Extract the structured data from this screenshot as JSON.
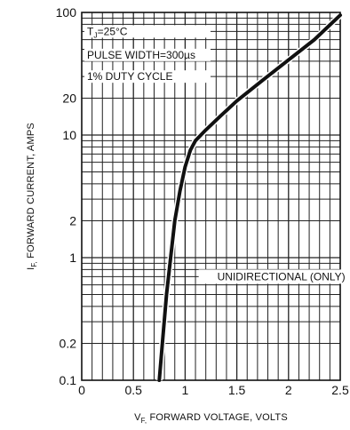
{
  "chart_data": {
    "type": "line",
    "x_label": {
      "sym": "V",
      "sub": "F",
      "text": "FORWARD VOLTAGE, VOLTS"
    },
    "y_label": {
      "sym": "I",
      "sub": "F",
      "text": "FORWARD CURRENT, AMPS"
    },
    "x_scale": "linear",
    "y_scale": "log",
    "xlim": [
      0,
      2.5
    ],
    "ylim": [
      0.1,
      100
    ],
    "x_ticks": [
      {
        "value": 0,
        "label": "0"
      },
      {
        "value": 0.5,
        "label": "0.5"
      },
      {
        "value": 1,
        "label": "1"
      },
      {
        "value": 1.5,
        "label": "1.5"
      },
      {
        "value": 2,
        "label": "2"
      },
      {
        "value": 2.5,
        "label": "2.5"
      }
    ],
    "y_ticks": [
      {
        "value": 0.1,
        "label": "0.1"
      },
      {
        "value": 0.2,
        "label": "0.2"
      },
      {
        "value": 1,
        "label": "1"
      },
      {
        "value": 2,
        "label": "2"
      },
      {
        "value": 10,
        "label": "10"
      },
      {
        "value": 20,
        "label": "20"
      },
      {
        "value": 100,
        "label": "100"
      }
    ],
    "grid": true,
    "series": [
      {
        "x": [
          0.75,
          0.78,
          0.82,
          0.86,
          0.9,
          0.95,
          1.0,
          1.05,
          1.1,
          1.2,
          1.35,
          1.5,
          1.75,
          2.0,
          2.25,
          2.5
        ],
        "y": [
          0.1,
          0.2,
          0.5,
          1,
          2,
          3.5,
          5.5,
          7.5,
          9,
          11,
          14.5,
          19,
          28,
          41,
          60,
          95
        ]
      }
    ],
    "annotations": {
      "conditions": [
        {
          "sym": "T",
          "sub": "J",
          "text": "=25°C"
        },
        {
          "text": "PULSE WIDTH=300µs"
        },
        {
          "text": "1% DUTY CYCLE"
        }
      ],
      "note": "UNIDIRECTIONAL (ONLY)"
    }
  }
}
